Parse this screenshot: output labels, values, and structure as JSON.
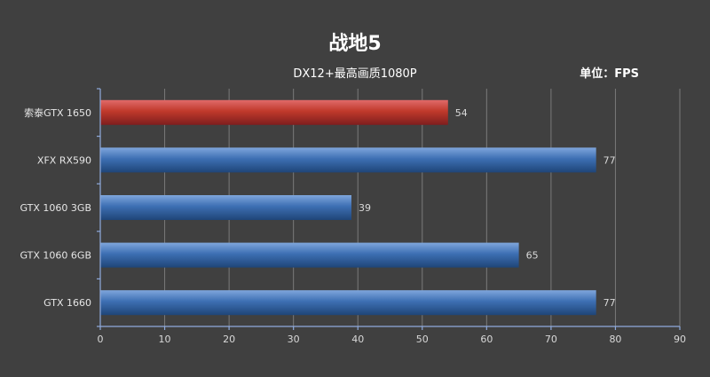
{
  "chart_data": {
    "type": "bar",
    "orientation": "horizontal",
    "title": "战地5",
    "subtitle": "DX12+最高画质1080P",
    "unit_label": "单位：FPS",
    "categories": [
      "索泰GTX 1650",
      "XFX RX590",
      "GTX 1060 3GB",
      "GTX 1060 6GB",
      "GTX 1660"
    ],
    "values": [
      54,
      77,
      39,
      65,
      77
    ],
    "highlight_index": 0,
    "xlim": [
      0,
      90
    ],
    "xticks": [
      0,
      10,
      20,
      30,
      40,
      50,
      60,
      70,
      80,
      90
    ],
    "grid": true,
    "colors": {
      "background": "#404040",
      "highlight_bar": "#c0392b",
      "default_bar": "#3d6fb3",
      "grid": "#7a7a7a",
      "axis": "#8faadc"
    }
  }
}
